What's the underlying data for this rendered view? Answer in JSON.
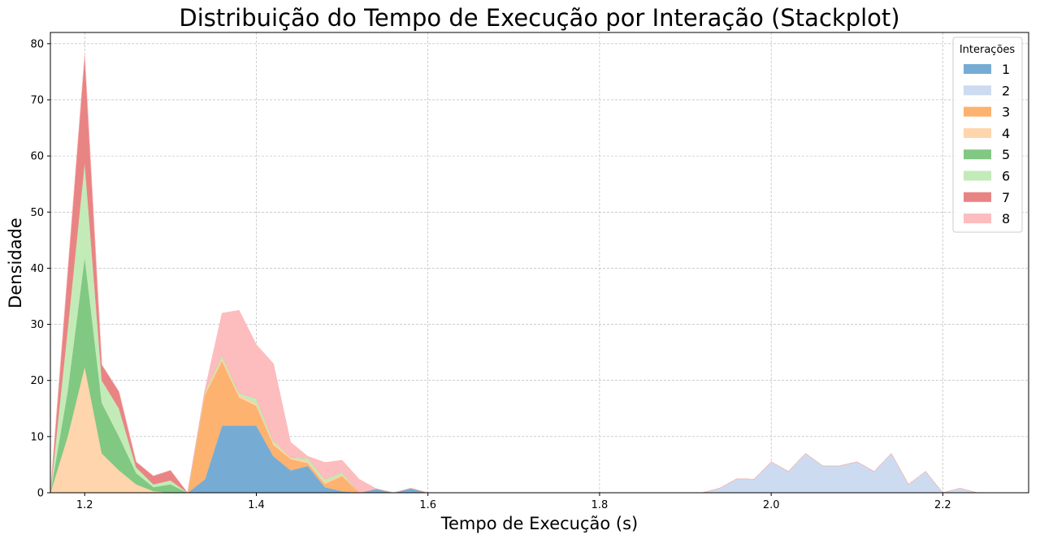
{
  "chart_data": {
    "type": "area",
    "title": "Distribuição do Tempo de Execução por Interação (Stackplot)",
    "xlabel": "Tempo de Execução (s)",
    "ylabel": "Densidade",
    "xlim": [
      1.16,
      2.3
    ],
    "ylim": [
      0,
      82
    ],
    "xticks": [
      1.2,
      1.4,
      1.6,
      1.8,
      2.0,
      2.2
    ],
    "xtick_labels": [
      "1.2",
      "1.4",
      "1.6",
      "1.8",
      "2.0",
      "2.2"
    ],
    "yticks": [
      0,
      10,
      20,
      30,
      40,
      50,
      60,
      70,
      80
    ],
    "ytick_labels": [
      "0",
      "10",
      "20",
      "30",
      "40",
      "50",
      "60",
      "70",
      "80"
    ],
    "grid": true,
    "legend_title": "Interações",
    "legend_position": "top-right",
    "x": [
      1.16,
      1.18,
      1.2,
      1.22,
      1.24,
      1.26,
      1.28,
      1.3,
      1.32,
      1.34,
      1.36,
      1.38,
      1.4,
      1.42,
      1.44,
      1.46,
      1.48,
      1.5,
      1.52,
      1.54,
      1.56,
      1.58,
      1.6,
      1.8,
      1.92,
      1.94,
      1.96,
      1.98,
      2.0,
      2.02,
      2.04,
      2.06,
      2.08,
      2.1,
      2.12,
      2.14,
      2.16,
      2.18,
      2.2,
      2.22,
      2.24,
      2.3
    ],
    "series": [
      {
        "name": "1",
        "color": "#76acd4",
        "values": [
          0,
          0,
          0,
          0,
          0,
          0,
          0,
          0,
          0,
          2.4,
          12,
          12,
          12,
          6.5,
          4,
          4.8,
          1,
          0.3,
          0,
          0.7,
          0,
          0.8,
          0,
          0,
          0,
          0,
          0,
          0,
          0,
          0,
          0,
          0,
          0,
          0,
          0,
          0,
          0,
          0,
          0,
          0,
          0,
          0
        ]
      },
      {
        "name": "2",
        "color": "#cddbf0",
        "values": [
          0,
          0,
          0,
          0,
          0,
          0,
          0,
          0,
          0,
          0,
          0,
          0,
          0,
          0,
          0,
          0,
          0,
          0,
          0,
          0,
          0,
          0,
          0,
          0,
          0,
          0.8,
          2.5,
          2.4,
          5.5,
          3.8,
          7,
          4.8,
          4.8,
          5.5,
          3.8,
          7,
          1.5,
          3.8,
          0,
          0.8,
          0,
          0
        ]
      },
      {
        "name": "3",
        "color": "#fdb26f",
        "values": [
          0,
          0,
          0,
          0,
          0,
          0,
          0,
          0,
          0,
          15,
          11.5,
          5,
          3.5,
          2,
          2,
          0.5,
          0.6,
          2.7,
          0,
          0,
          0,
          0,
          0,
          0,
          0,
          0,
          0,
          0,
          0,
          0,
          0,
          0,
          0,
          0,
          0,
          0,
          0,
          0,
          0,
          0,
          0,
          0
        ]
      },
      {
        "name": "4",
        "color": "#fed5ac",
        "values": [
          0,
          10,
          22.5,
          7,
          4,
          1.5,
          0.3,
          0,
          0,
          0.5,
          0.5,
          0.5,
          0.5,
          0.5,
          0.3,
          0.4,
          0.3,
          0.3,
          0,
          0,
          0,
          0,
          0,
          0,
          0,
          0,
          0,
          0,
          0,
          0,
          0,
          0,
          0,
          0,
          0,
          0,
          0,
          0,
          0,
          0,
          0,
          0
        ]
      },
      {
        "name": "5",
        "color": "#81c883",
        "values": [
          0,
          8,
          19.5,
          9,
          6,
          2,
          0.7,
          1.5,
          0,
          0,
          0,
          0,
          0,
          0,
          0,
          0,
          0,
          0,
          0,
          0,
          0,
          0,
          0,
          0,
          0,
          0,
          0,
          0,
          0,
          0,
          0,
          0,
          0,
          0,
          0,
          0,
          0,
          0,
          0,
          0,
          0,
          0
        ]
      },
      {
        "name": "6",
        "color": "#c3ebb8",
        "values": [
          0,
          11,
          17,
          4,
          5,
          1,
          0.5,
          0.7,
          0,
          0.2,
          0.5,
          0.3,
          0.8,
          0.3,
          0,
          0.5,
          0.5,
          0.4,
          0,
          0,
          0,
          0,
          0,
          0,
          0,
          0,
          0,
          0,
          0,
          0,
          0,
          0,
          0,
          0,
          0,
          0,
          0,
          0,
          0,
          0,
          0,
          0
        ]
      },
      {
        "name": "7",
        "color": "#e98484",
        "values": [
          0,
          10,
          19,
          2.8,
          3,
          1,
          1.5,
          1.8,
          0,
          0,
          0,
          0,
          0,
          0,
          0,
          0,
          0,
          0,
          0,
          0,
          0,
          0,
          0,
          0,
          0,
          0,
          0,
          0,
          0,
          0,
          0,
          0,
          0,
          0,
          0,
          0,
          0,
          0,
          0,
          0,
          0,
          0
        ]
      },
      {
        "name": "8",
        "color": "#fdbcbd",
        "values": [
          0,
          0,
          0,
          0,
          0,
          0,
          0,
          0,
          0,
          0.2,
          7.5,
          14.7,
          9.6,
          13.7,
          2.7,
          0.3,
          3,
          2.1,
          2.4,
          0,
          0,
          0,
          0,
          0,
          0,
          0,
          0,
          0,
          0,
          0,
          0,
          0,
          0,
          0,
          0,
          0,
          0,
          0,
          0,
          0,
          0,
          0
        ]
      }
    ]
  }
}
